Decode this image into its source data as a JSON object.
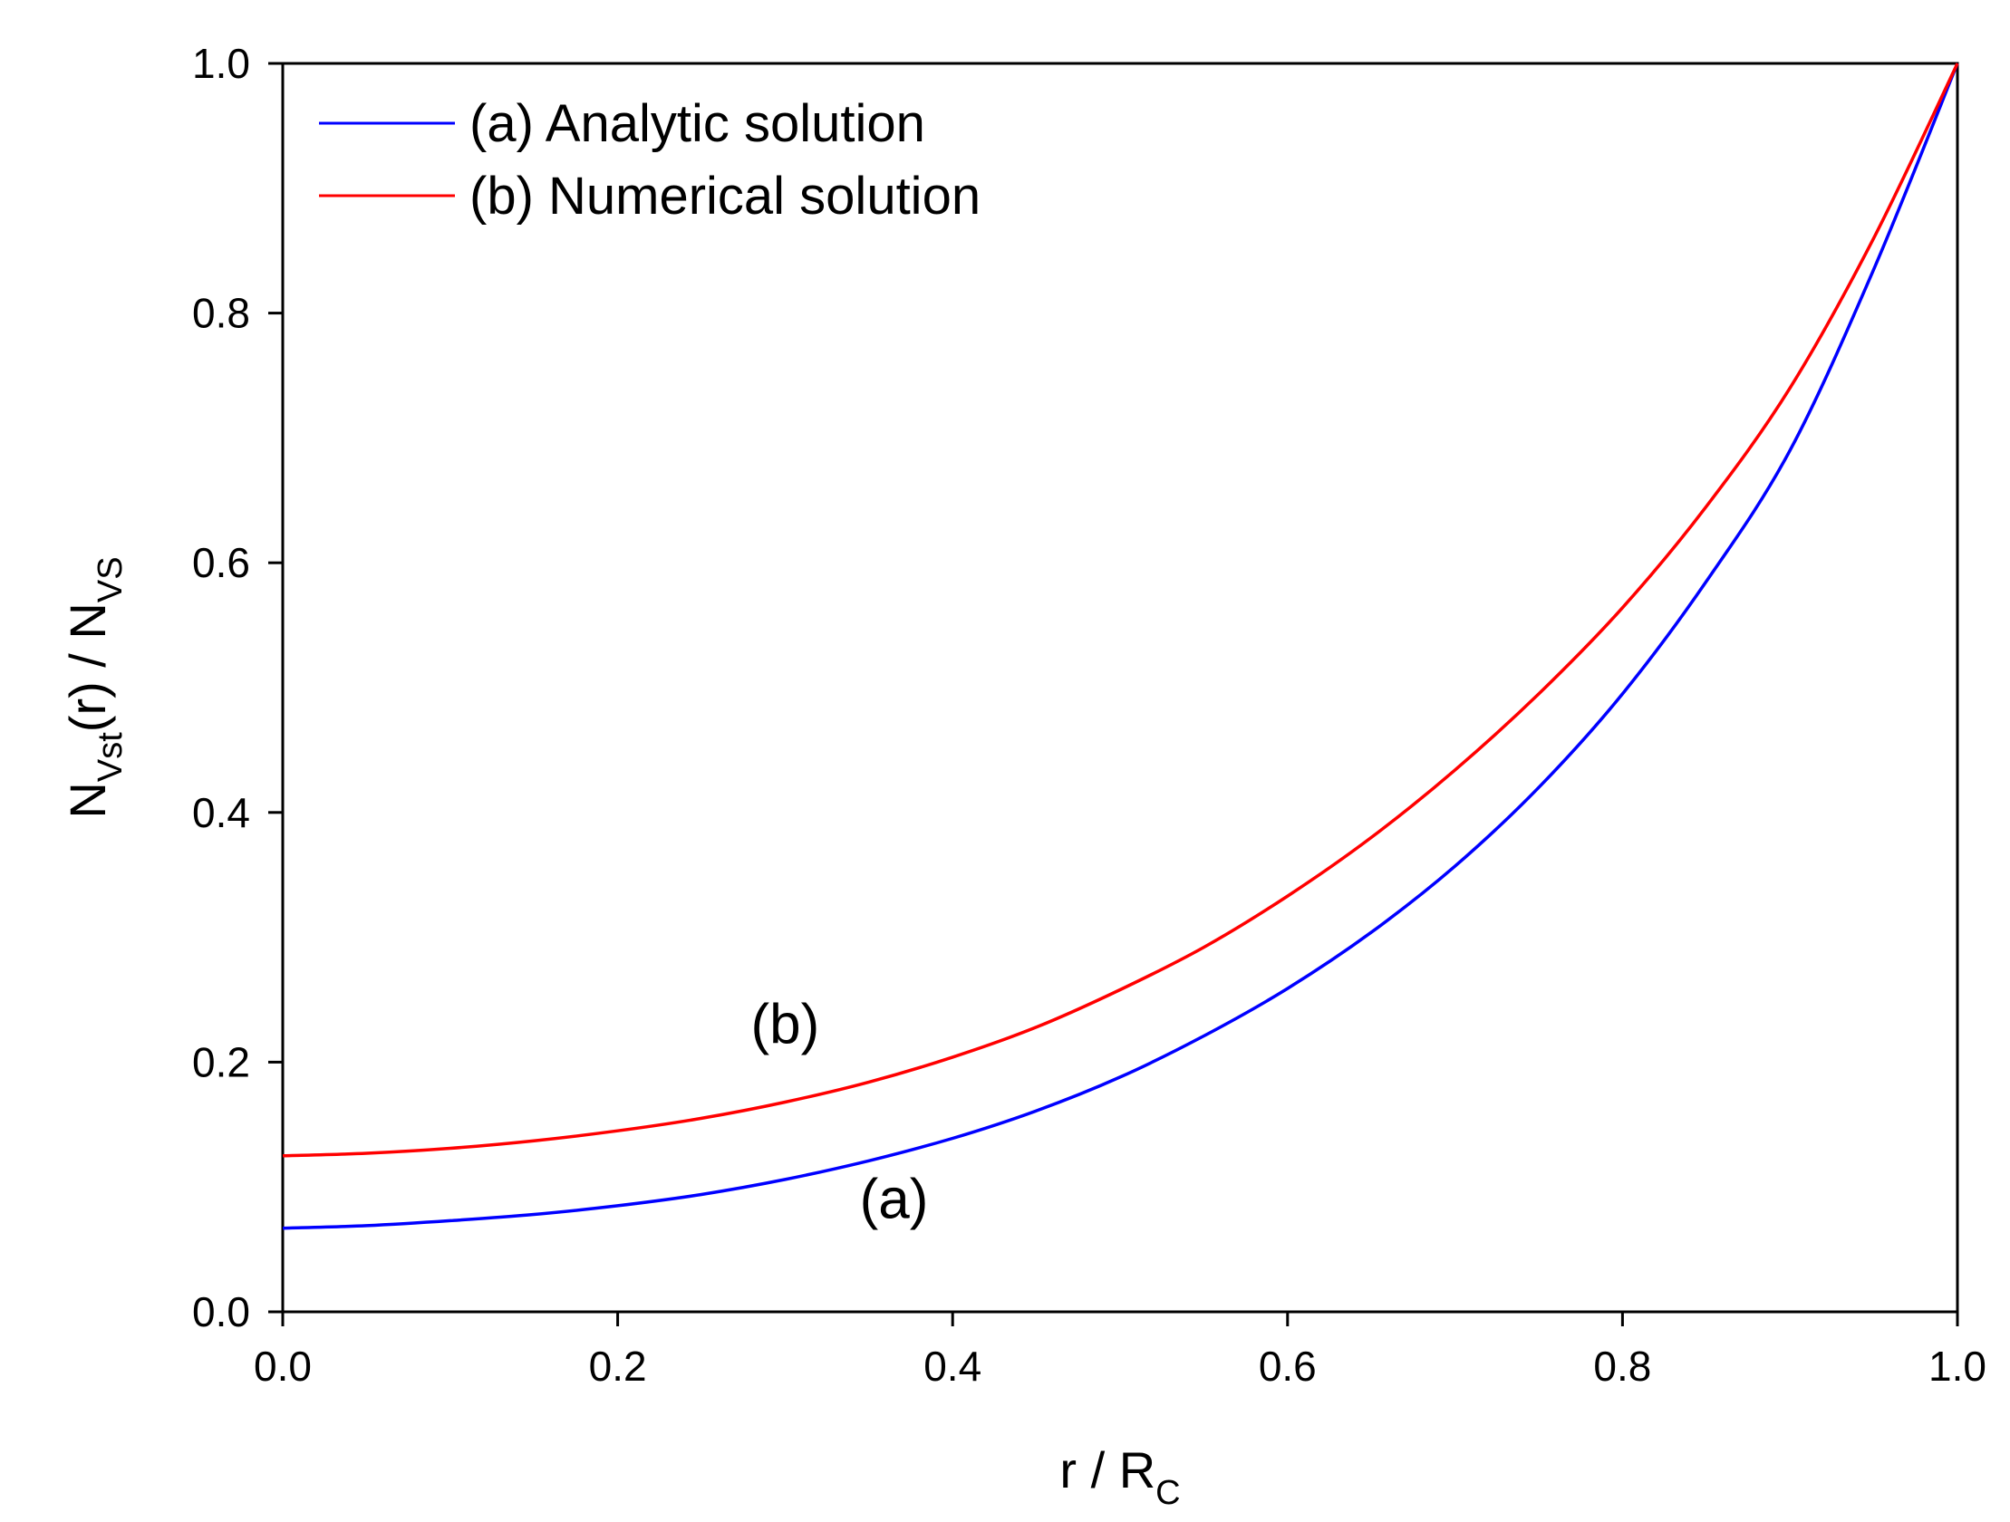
{
  "chart_data": {
    "type": "line",
    "xlabel": {
      "main": "r / R",
      "sub": "C"
    },
    "ylabel": {
      "p1": "N",
      "s1": "Vst",
      "p2": "(r) / N",
      "s2": "VS"
    },
    "xlim": [
      0.0,
      1.0
    ],
    "ylim": [
      0.0,
      1.0
    ],
    "xticks": [
      "0.0",
      "0.2",
      "0.4",
      "0.6",
      "0.8",
      "1.0"
    ],
    "yticks": [
      "0.0",
      "0.2",
      "0.4",
      "0.6",
      "0.8",
      "1.0"
    ],
    "grid": false,
    "legend_position": "top-left",
    "series": [
      {
        "name": "(a) Analytic solution",
        "color": "#0000ff",
        "x": [
          0.0,
          0.05,
          0.1,
          0.15,
          0.2,
          0.25,
          0.3,
          0.35,
          0.4,
          0.45,
          0.5,
          0.55,
          0.6,
          0.65,
          0.7,
          0.75,
          0.8,
          0.85,
          0.9,
          0.95,
          1.0
        ],
        "y": [
          0.067,
          0.069,
          0.073,
          0.078,
          0.085,
          0.094,
          0.106,
          0.121,
          0.139,
          0.161,
          0.188,
          0.221,
          0.259,
          0.304,
          0.357,
          0.42,
          0.495,
          0.585,
          0.69,
          0.835,
          1.0
        ]
      },
      {
        "name": "(b) Numerical solution",
        "color": "#ff0000",
        "x": [
          0.0,
          0.05,
          0.1,
          0.15,
          0.2,
          0.25,
          0.3,
          0.35,
          0.4,
          0.45,
          0.5,
          0.55,
          0.6,
          0.65,
          0.7,
          0.75,
          0.8,
          0.85,
          0.9,
          0.95,
          1.0
        ],
        "y": [
          0.125,
          0.127,
          0.131,
          0.137,
          0.145,
          0.155,
          0.168,
          0.184,
          0.204,
          0.228,
          0.258,
          0.292,
          0.333,
          0.38,
          0.434,
          0.495,
          0.564,
          0.645,
          0.74,
          0.86,
          1.0
        ]
      }
    ],
    "annotations": [
      {
        "text": "(b)",
        "x": 0.3,
        "y": 0.215
      },
      {
        "text": "(a)",
        "x": 0.365,
        "y": 0.075
      }
    ]
  }
}
